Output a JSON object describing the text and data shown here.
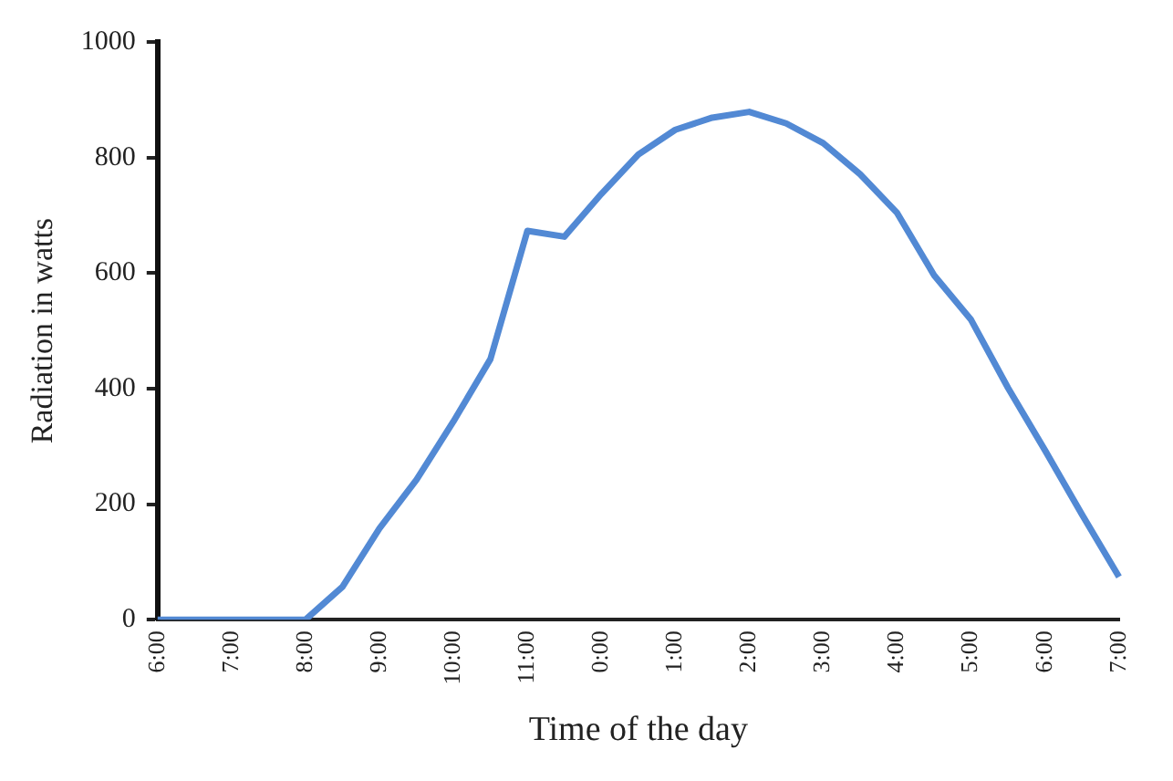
{
  "chart_data": {
    "type": "line",
    "xlabel": "Time of the day",
    "ylabel": "Radiation in watts",
    "categories": [
      "6:00",
      null,
      "7:00",
      null,
      "8:00",
      null,
      "9:00",
      null,
      "10:00",
      null,
      "11:00",
      null,
      "0:00",
      null,
      "1:00",
      null,
      "2:00",
      null,
      "3:00",
      null,
      "4:00",
      null,
      "5:00",
      null,
      "6:00",
      null,
      "7:00"
    ],
    "series": [
      {
        "color": "#5289d4",
        "values": [
          0,
          0,
          0,
          0,
          0,
          57,
          158,
          242,
          343,
          451,
          673,
          663,
          737,
          805,
          848,
          869,
          879,
          859,
          825,
          771,
          704,
          596,
          519,
          401,
          293,
          182,
          74
        ]
      }
    ],
    "ylim": [
      0,
      1000
    ],
    "yticks": [
      0,
      200,
      400,
      600,
      800,
      1000
    ],
    "grid": false,
    "legend": false,
    "marker": "none",
    "line_style": "solid"
  }
}
